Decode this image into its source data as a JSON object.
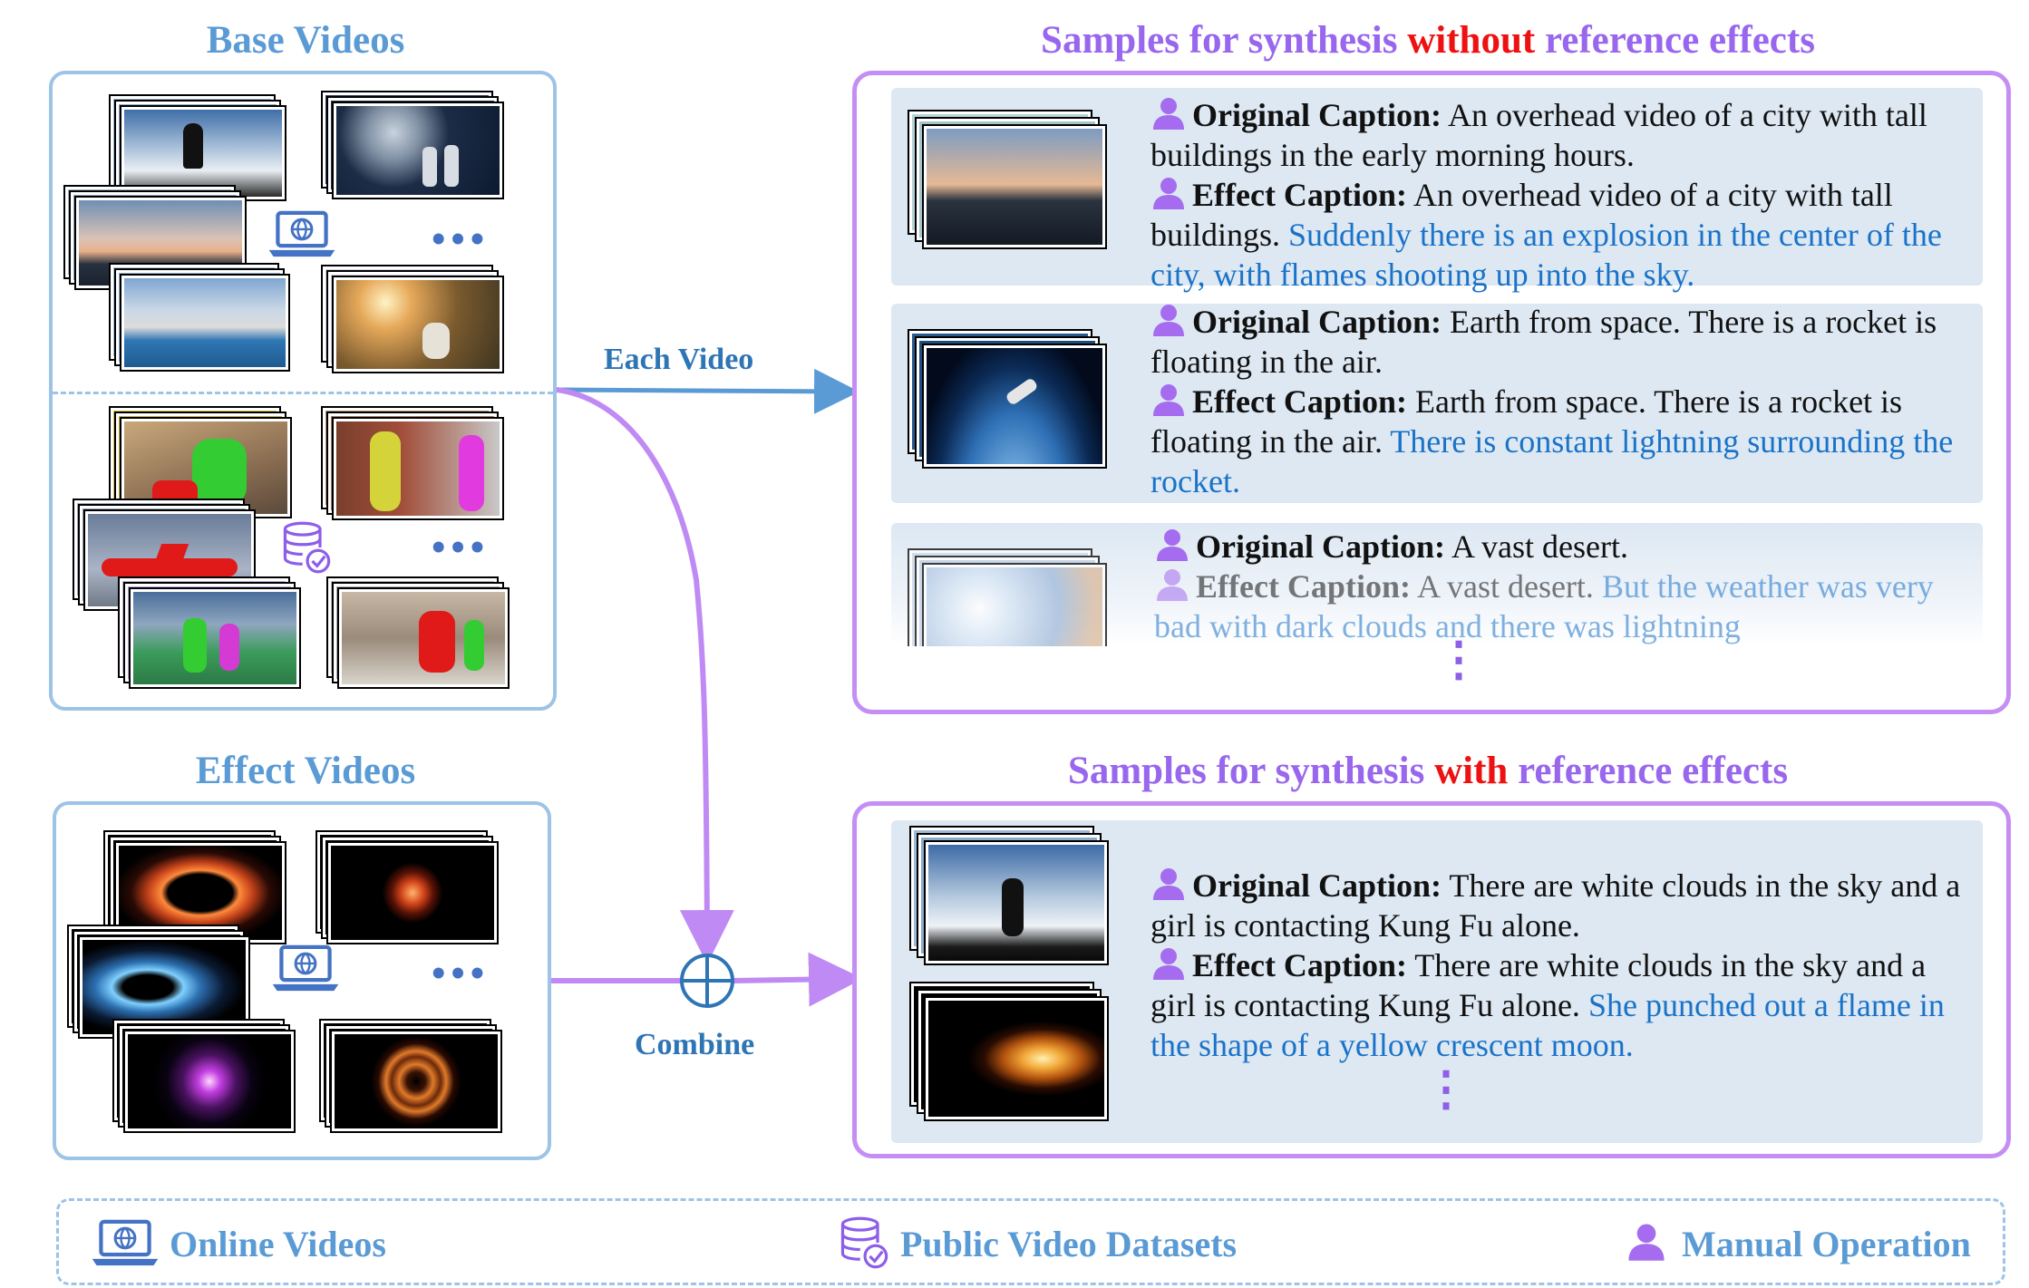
{
  "titles": {
    "base_videos": "Base Videos",
    "effect_videos": "Effect Videos",
    "without_prefix": "Samples for synthesis ",
    "without_word": "without",
    "without_suffix": " reference effects",
    "with_prefix": "Samples for synthesis ",
    "with_word": "with",
    "with_suffix": " reference effects"
  },
  "flow": {
    "each_video": "Each Video",
    "combine": "Combine"
  },
  "samples_without": [
    {
      "orig_label": "Original Caption:",
      "orig_text": " An overhead video of a city with tall buildings in the early morning hours.",
      "eff_label": "Effect Caption:",
      "eff_text": " An overhead video of a city with tall buildings. ",
      "eff_added": "Suddenly there is an explosion in the center of the city, with flames shooting up into the sky."
    },
    {
      "orig_label": "Original Caption:",
      "orig_text": " Earth from space. There is a rocket is floating in the air.",
      "eff_label": "Effect Caption:",
      "eff_text": "  Earth from space. There is a rocket is floating in the air. ",
      "eff_added": "There is constant lightning surrounding the rocket."
    },
    {
      "orig_label": "Original Caption:",
      "orig_text": " A vast desert.",
      "eff_label": "Effect Caption:",
      "eff_text": "  A vast desert. ",
      "eff_added": "But the weather was very bad with dark clouds and there was lightning"
    }
  ],
  "sample_with": {
    "orig_label": "Original Caption:",
    "orig_text": " There are white clouds in the sky and a girl is contacting Kung Fu alone.",
    "eff_label": "Effect Caption:",
    "eff_text": " There are white clouds in the sky and a girl is contacting Kung Fu alone. ",
    "eff_added": "She punched out a flame in the shape of a yellow crescent moon."
  },
  "ellipsis_h": "•••",
  "ellipsis_v": "⋮",
  "legend": {
    "online": "Online Videos",
    "public": "Public Video Datasets",
    "manual": "Manual Operation"
  },
  "icons": {
    "online": "laptop-globe-icon",
    "public": "database-check-icon",
    "manual": "person-icon"
  },
  "colors": {
    "base_blue": "#5b9bd5",
    "panel_blue": "#9dc3e6",
    "purple": "#9966ee",
    "panel_purple": "#c58ef5",
    "red": "#ee1111",
    "effect_text": "#1a73c8",
    "arrow_blue": "#5b9bd5",
    "arrow_purple": "#c08af5"
  }
}
